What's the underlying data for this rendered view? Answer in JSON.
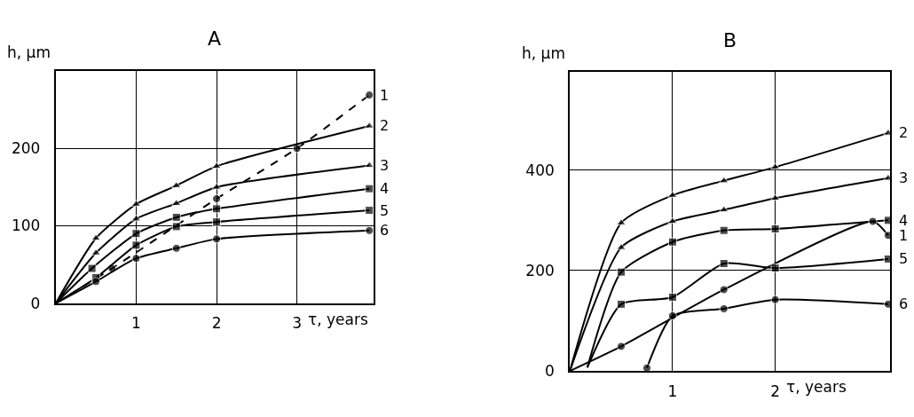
{
  "chart_data": [
    {
      "type": "line",
      "title": "A",
      "xlabel": "τ, years",
      "ylabel": "h, µm",
      "xlim": [
        0,
        3.95
      ],
      "ylim": [
        0,
        300
      ],
      "xticks": [
        1,
        2,
        3
      ],
      "yticks": [
        0,
        100,
        200
      ],
      "grid": true,
      "series": [
        {
          "name": "1",
          "color": "#000000",
          "line_style": "dashed",
          "marker": "circle",
          "x": [
            0,
            0.7,
            2,
            3,
            3.9
          ],
          "values": [
            0,
            45,
            135,
            200,
            269
          ]
        },
        {
          "name": "2",
          "color": "#000000",
          "line_style": "solid",
          "marker": "triangle",
          "x": [
            0,
            0.5,
            1,
            1.5,
            2,
            3.9
          ],
          "values": [
            0,
            84,
            128,
            152,
            177,
            229
          ]
        },
        {
          "name": "3",
          "color": "#000000",
          "line_style": "solid",
          "marker": "triangle",
          "x": [
            0,
            0.5,
            1,
            1.5,
            2,
            3.9
          ],
          "values": [
            0,
            65,
            109,
            129,
            150,
            178
          ]
        },
        {
          "name": "4",
          "color": "#000000",
          "line_style": "solid",
          "marker": "square",
          "x": [
            0,
            0.45,
            1,
            1.5,
            2,
            3.9
          ],
          "values": [
            0,
            45,
            90,
            111,
            122,
            148
          ]
        },
        {
          "name": "5",
          "color": "#000000",
          "line_style": "solid",
          "marker": "square",
          "x": [
            0,
            0.5,
            1,
            1.5,
            2,
            3.9
          ],
          "values": [
            0,
            33,
            75,
            99,
            105,
            120
          ]
        },
        {
          "name": "6",
          "color": "#000000",
          "line_style": "solid",
          "marker": "circle",
          "x": [
            0,
            0.5,
            1,
            1.5,
            2,
            3.9
          ],
          "values": [
            0,
            28,
            58,
            71,
            83,
            94
          ]
        }
      ]
    },
    {
      "type": "line",
      "title": "B",
      "xlabel": "τ, years",
      "ylabel": "h, µm",
      "xlim": [
        0,
        3.12
      ],
      "ylim": [
        0,
        595
      ],
      "xticks": [
        1,
        2
      ],
      "yticks": [
        0,
        200,
        400
      ],
      "grid": true,
      "series": [
        {
          "name": "2",
          "color": "#000000",
          "line_style": "solid",
          "marker": "triangle",
          "x": [
            0,
            0.5,
            1,
            1.5,
            2,
            3.1
          ],
          "values": [
            0,
            295,
            350,
            379,
            406,
            474
          ]
        },
        {
          "name": "3",
          "color": "#000000",
          "line_style": "solid",
          "marker": "triangle",
          "x": [
            0,
            0.5,
            1,
            1.5,
            2,
            3.1
          ],
          "values": [
            0,
            246,
            298,
            321,
            344,
            384
          ]
        },
        {
          "name": "4",
          "color": "#000000",
          "line_style": "solid",
          "marker": "square",
          "x": [
            0.17,
            0.5,
            1,
            1.5,
            2,
            3.1
          ],
          "values": [
            7,
            197,
            257,
            280,
            283,
            300
          ]
        },
        {
          "name": "1",
          "color": "#000000",
          "line_style": "solid",
          "marker": "circle",
          "x": [
            0,
            0.5,
            1.5,
            2.95,
            3.1
          ],
          "values": [
            0,
            49,
            162,
            298,
            270
          ]
        },
        {
          "name": "5",
          "color": "#000000",
          "line_style": "solid",
          "marker": "square",
          "x": [
            0.17,
            0.5,
            1,
            1.5,
            2,
            3.1
          ],
          "values": [
            7,
            133,
            147,
            214,
            205,
            223
          ]
        },
        {
          "name": "6",
          "color": "#000000",
          "line_style": "solid",
          "marker": "circle",
          "x": [
            0.75,
            1,
            1.5,
            2,
            3.1
          ],
          "values": [
            6,
            110,
            124,
            142,
            133
          ]
        }
      ]
    }
  ]
}
